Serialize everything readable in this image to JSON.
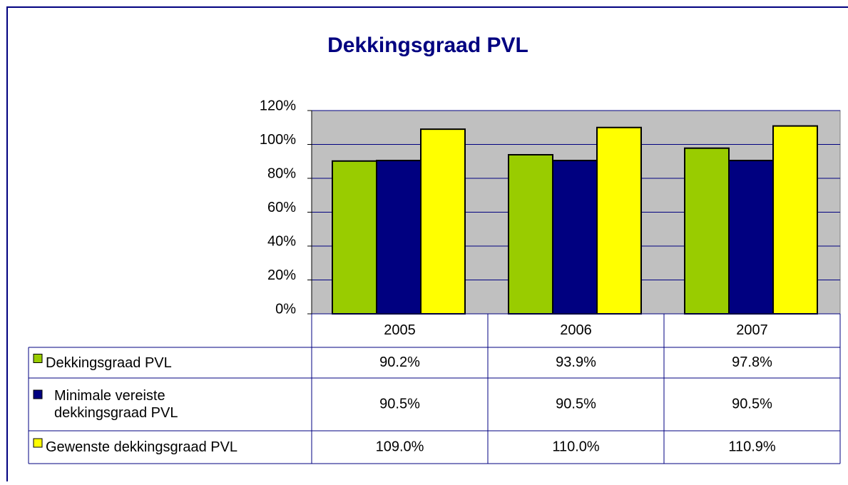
{
  "chart_data": {
    "type": "bar",
    "title": "Dekkingsgraad PVL",
    "categories": [
      "2005",
      "2006",
      "2007"
    ],
    "series": [
      {
        "name": "Dekkingsgraad PVL",
        "color": "#99cc00",
        "values": [
          90.2,
          93.9,
          97.8
        ],
        "value_labels": [
          "90.2%",
          "93.9%",
          "97.8%"
        ]
      },
      {
        "name": "Minimale vereiste dekkingsgraad PVL",
        "color": "#000080",
        "values": [
          90.5,
          90.5,
          90.5
        ],
        "value_labels": [
          "90.5%",
          "90.5%",
          "90.5%"
        ]
      },
      {
        "name": "Gewenste dekkingsgraad PVL",
        "color": "#ffff00",
        "values": [
          109.0,
          110.0,
          110.9
        ],
        "value_labels": [
          "109.0%",
          "110.0%",
          "110.9%"
        ]
      }
    ],
    "ylim": [
      0,
      120
    ],
    "yticks": [
      {
        "value": 0,
        "label": "0%"
      },
      {
        "value": 20,
        "label": "20%"
      },
      {
        "value": 40,
        "label": "40%"
      },
      {
        "value": 60,
        "label": "60%"
      },
      {
        "value": 80,
        "label": "80%"
      },
      {
        "value": 100,
        "label": "100%"
      },
      {
        "value": 120,
        "label": "120%"
      }
    ],
    "grid": true,
    "legend": "table"
  }
}
